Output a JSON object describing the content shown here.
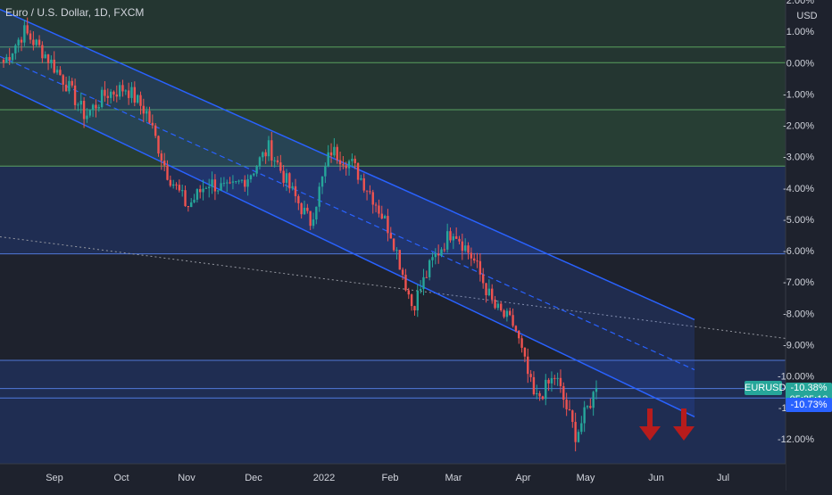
{
  "header": {
    "title": "Euro / U.S. Dollar, 1D, FXCM"
  },
  "price_axis": {
    "unit": "USD",
    "ticks": [
      "2.00%",
      "1.00%",
      "0.00%",
      "-1.00%",
      "-2.00%",
      "-3.00%",
      "-4.00%",
      "-5.00%",
      "-6.00%",
      "-7.00%",
      "-8.00%",
      "-9.00%",
      "-10.00%",
      "-11.00%",
      "-12.00%"
    ]
  },
  "time_axis": {
    "labels": [
      "Sep",
      "Oct",
      "Nov",
      "Dec",
      "2022",
      "Feb",
      "Mar",
      "Apr",
      "May",
      "Jun",
      "Jul"
    ]
  },
  "badges": {
    "symbol": "EURUSD",
    "last_value": "-10.38%",
    "countdown": "05:25:13",
    "low_value": "-10.73%"
  },
  "colors": {
    "background": "#1e222d",
    "up": "#26a69a",
    "down": "#ef5350",
    "channel": "#2962ff",
    "zone_green": "#4caf50",
    "zone_blue": "#2962ff",
    "arrow": "#b71c1c",
    "last_badge": "#26a69a",
    "low_badge": "#2962ff"
  },
  "chart_data": {
    "type": "candlestick",
    "title": "Euro / U.S. Dollar, 1D, FXCM",
    "y_scale": "percent",
    "ylim": [
      -12.8,
      2.0
    ],
    "x_range": [
      "Aug 2021",
      "Jul 2022"
    ],
    "anchors": [
      {
        "t": "Aug",
        "v": 0.0
      },
      {
        "t": "Sep",
        "v": 1.0
      },
      {
        "t": "Sep",
        "v": 0.3
      },
      {
        "t": "Oct",
        "v": -0.6
      },
      {
        "t": "Oct",
        "v": -1.7
      },
      {
        "t": "Oct",
        "v": -1.0
      },
      {
        "t": "Nov",
        "v": -0.8
      },
      {
        "t": "Nov",
        "v": -1.6
      },
      {
        "t": "Nov",
        "v": -3.5
      },
      {
        "t": "Dec",
        "v": -4.6
      },
      {
        "t": "Dec",
        "v": -3.8
      },
      {
        "t": "Dec",
        "v": -4.1
      },
      {
        "t": "2022",
        "v": -3.6
      },
      {
        "t": "2022",
        "v": -2.7
      },
      {
        "t": "2022",
        "v": -4.0
      },
      {
        "t": "Jan",
        "v": -5.1
      },
      {
        "t": "Feb",
        "v": -2.8
      },
      {
        "t": "Feb",
        "v": -3.2
      },
      {
        "t": "Feb",
        "v": -4.2
      },
      {
        "t": "Mar",
        "v": -5.5
      },
      {
        "t": "Mar",
        "v": -7.8
      },
      {
        "t": "Mar",
        "v": -6.3
      },
      {
        "t": "Apr",
        "v": -5.3
      },
      {
        "t": "Apr",
        "v": -6.3
      },
      {
        "t": "Apr",
        "v": -7.8
      },
      {
        "t": "Apr",
        "v": -8.4
      },
      {
        "t": "May",
        "v": -10.8
      },
      {
        "t": "May",
        "v": -10.0
      },
      {
        "t": "May",
        "v": -11.9
      },
      {
        "t": "May",
        "v": -10.38
      }
    ],
    "channel": {
      "upper": [
        {
          "t": "Aug",
          "v": 1.7
        },
        {
          "t": "Jun",
          "v": -8.2
        }
      ],
      "mid": [
        {
          "t": "Aug",
          "v": 0.2
        },
        {
          "t": "Jun",
          "v": -9.8
        }
      ],
      "lower": [
        {
          "t": "Aug",
          "v": -0.7
        },
        {
          "t": "Jun",
          "v": -11.3
        }
      ]
    },
    "trend_line": [
      {
        "t": "Aug",
        "v": -5.5
      },
      {
        "t": "Jul",
        "v": -8.8
      }
    ],
    "zones": [
      {
        "from": 2.0,
        "to": -1.5,
        "color": "green"
      },
      {
        "from": -1.5,
        "to": -3.3,
        "color": "green"
      },
      {
        "from": -3.3,
        "to": -6.1,
        "color": "blue"
      },
      {
        "from": -9.5,
        "to": -12.8,
        "color": "blue"
      }
    ],
    "horizontal_lines": [
      0.5,
      0.0,
      -1.5,
      -3.3,
      -6.1,
      -9.5,
      -10.4,
      -10.7
    ],
    "annotations": [
      "down-arrow",
      "down-arrow"
    ]
  }
}
